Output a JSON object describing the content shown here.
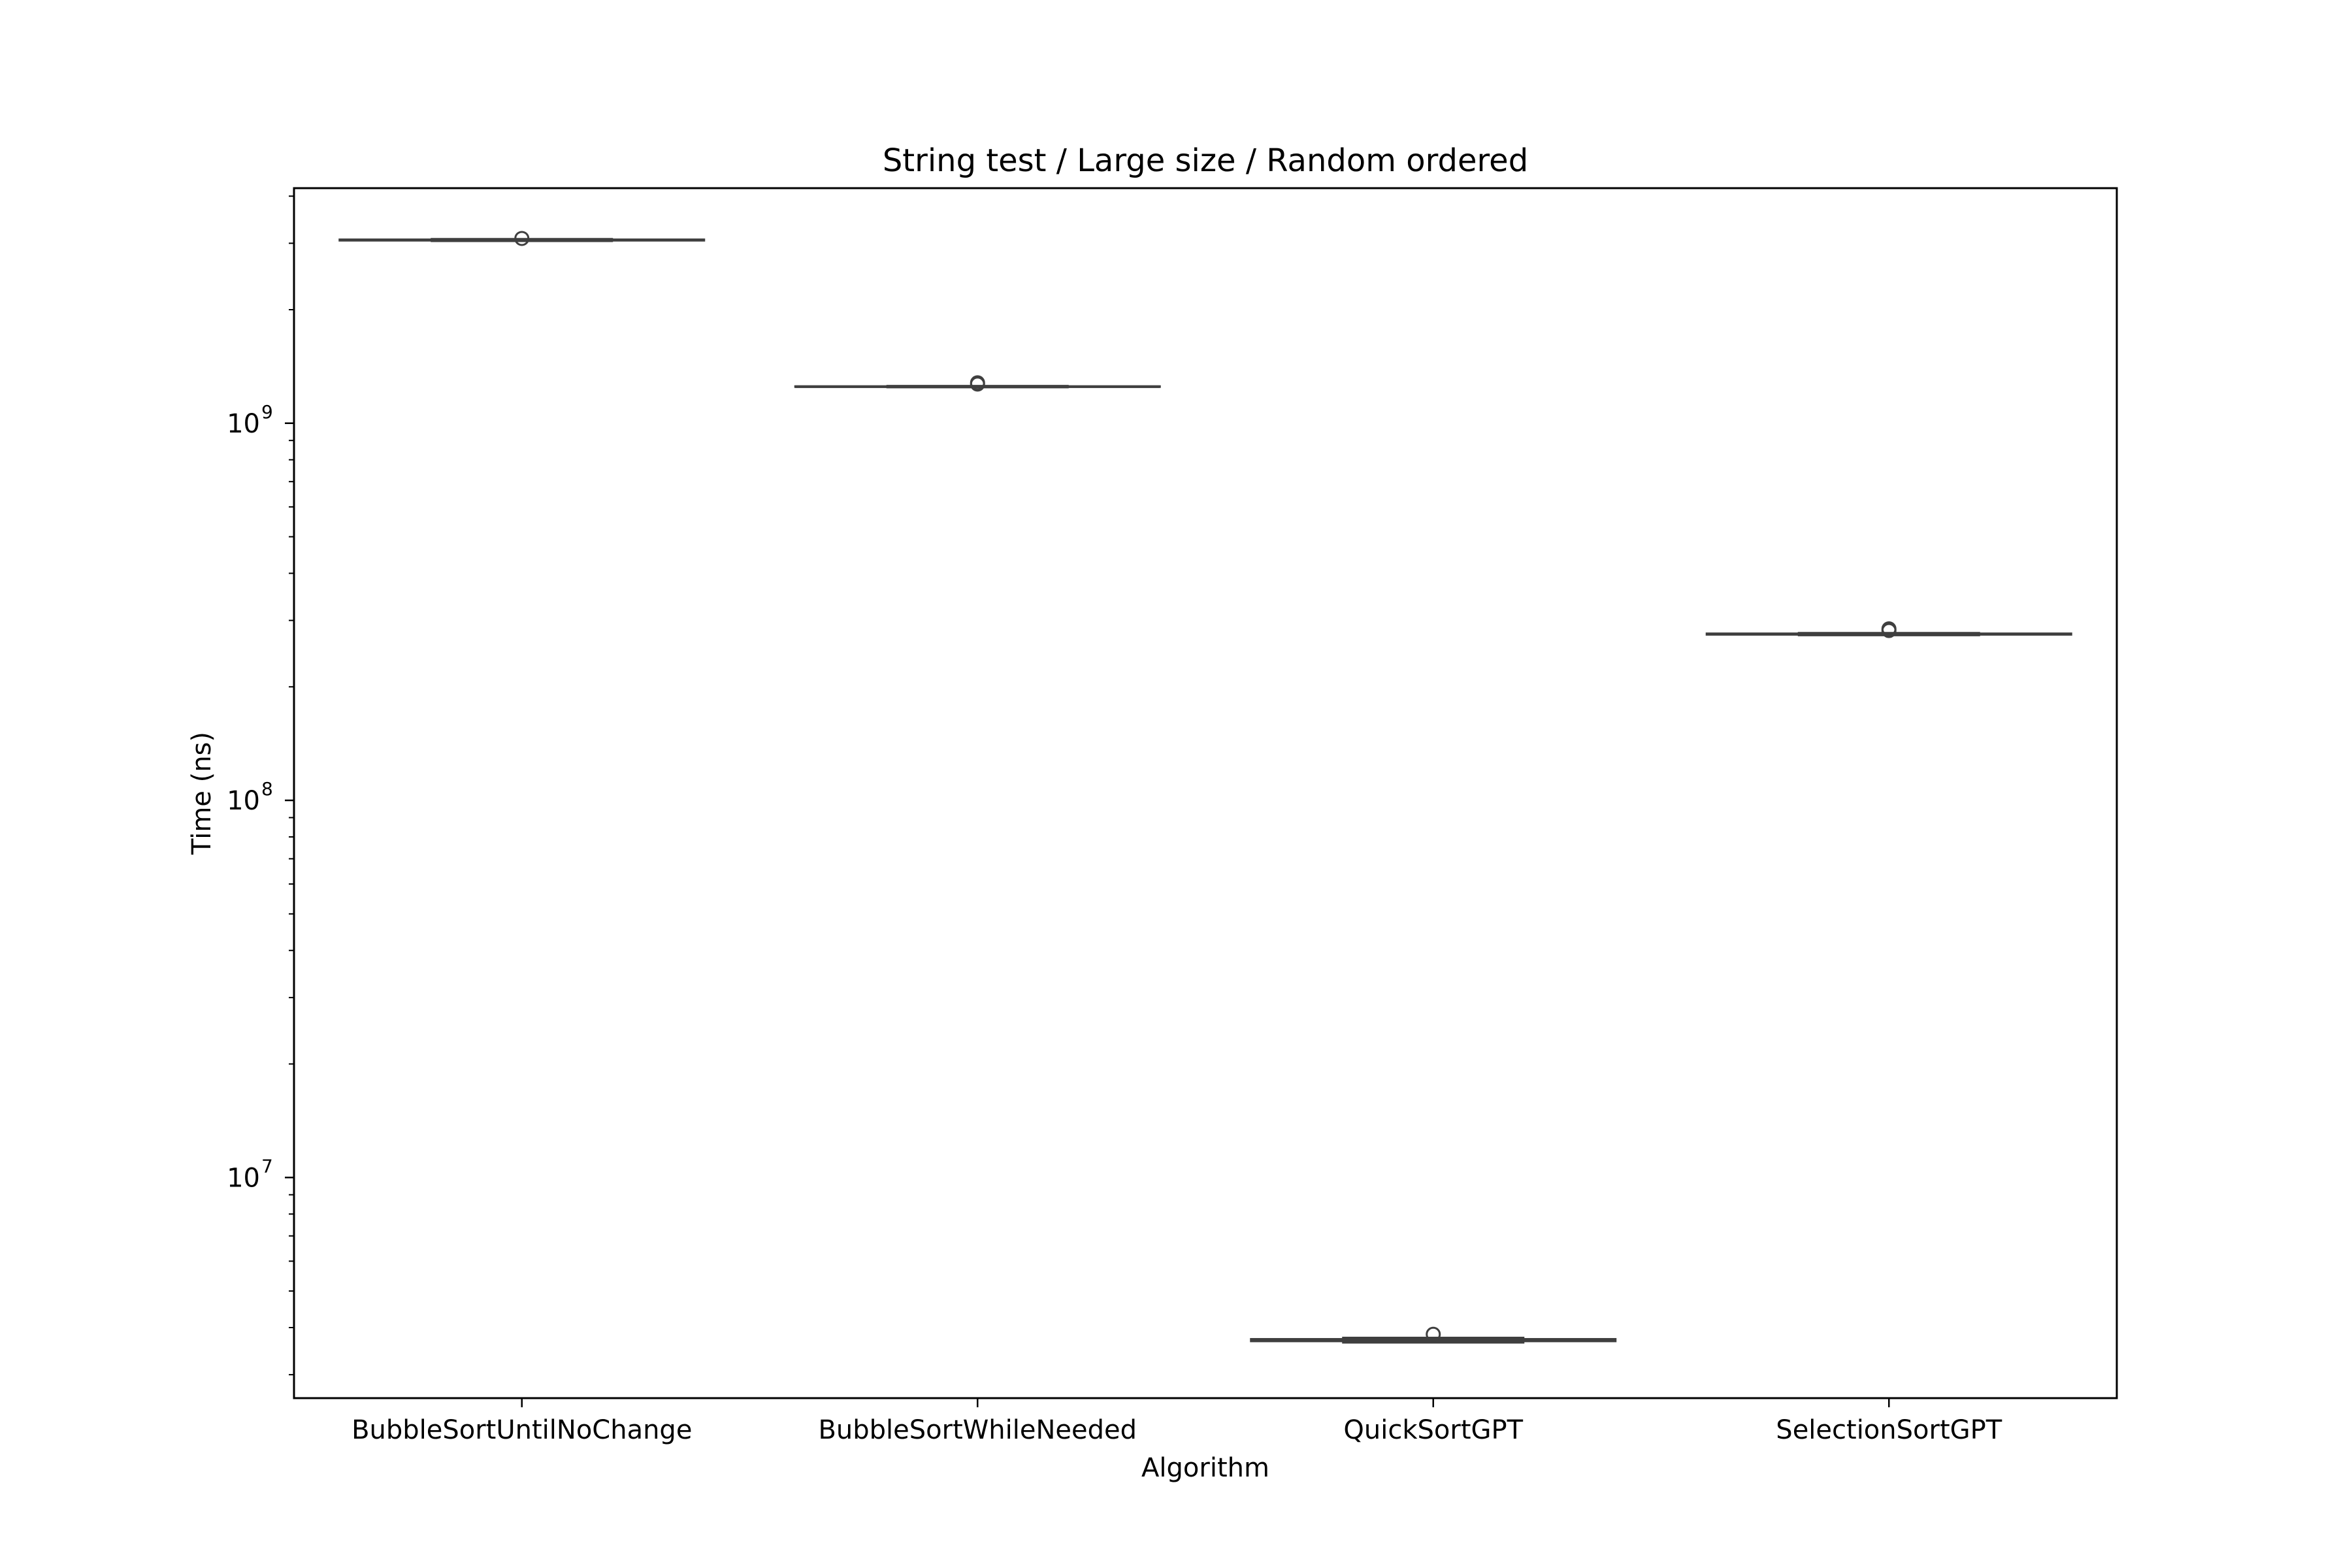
{
  "chart_data": {
    "type": "box",
    "title": "String test / Large size / Random ordered",
    "xlabel": "Algorithm",
    "ylabel": "Time (ns)",
    "yscale": "log",
    "ylim": [
      2600000,
      4200000000
    ],
    "y_ticks": [
      {
        "value": 10000000,
        "base": "10",
        "exp": "7"
      },
      {
        "value": 100000000,
        "base": "10",
        "exp": "8"
      },
      {
        "value": 1000000000,
        "base": "10",
        "exp": "9"
      }
    ],
    "categories": [
      "BubbleSortUntilNoChange",
      "BubbleSortWhileNeeded",
      "QuickSortGPT",
      "SelectionSortGPT"
    ],
    "boxes": [
      {
        "category": "BubbleSortUntilNoChange",
        "whisker_low": 3040000000,
        "q1": 3050000000,
        "median": 3060000000,
        "q3": 3070000000,
        "whisker_high": 3080000000,
        "outliers": [
          3090000000
        ]
      },
      {
        "category": "BubbleSortWhileNeeded",
        "whisker_low": 1245000000,
        "q1": 1248000000,
        "median": 1250000000,
        "q3": 1253000000,
        "whisker_high": 1256000000,
        "outliers": [
          1270000000,
          1280000000
        ]
      },
      {
        "category": "QuickSortGPT",
        "whisker_low": 3650000,
        "q1": 3680000,
        "median": 3700000,
        "q3": 3730000,
        "whisker_high": 3760000,
        "outliers": [
          3840000
        ]
      },
      {
        "category": "SelectionSortGPT",
        "whisker_low": 274000000,
        "q1": 275000000,
        "median": 276000000,
        "q3": 277000000,
        "whisker_high": 278000000,
        "outliers": [
          282000000,
          285000000
        ]
      }
    ],
    "grid": false,
    "colors": {
      "box": "#3f3f3f",
      "axis": "#000000"
    }
  }
}
